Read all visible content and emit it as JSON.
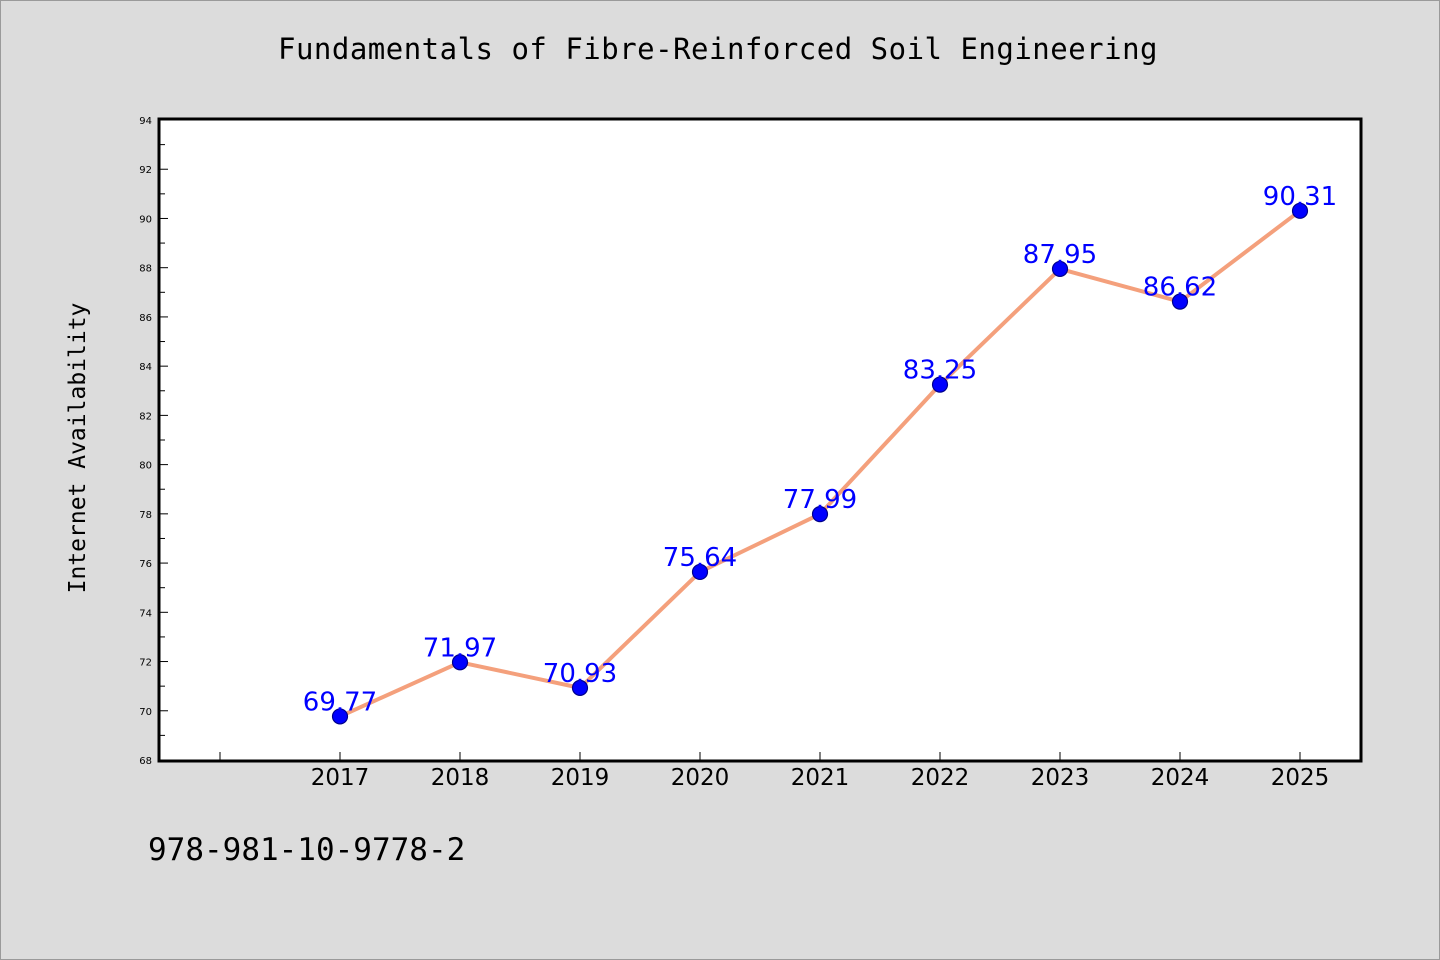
{
  "chart_data": {
    "type": "line",
    "title": "Fundamentals of Fibre-Reinforced Soil Engineering",
    "xlabel": "",
    "ylabel": "Internet Availability",
    "categories": [
      "2017",
      "2018",
      "2019",
      "2020",
      "2021",
      "2022",
      "2023",
      "2024",
      "2025"
    ],
    "series": [
      {
        "values": [
          69.77,
          71.97,
          70.93,
          75.64,
          77.99,
          83.25,
          87.95,
          86.62,
          90.31
        ],
        "data_labels": [
          "69.77",
          "71.97",
          "70.93",
          "75.64",
          "77.99",
          "83.25",
          "87.95",
          "86.62",
          "90.31"
        ]
      }
    ],
    "ylim": [
      68,
      94
    ],
    "yticks": [
      68,
      70,
      72,
      74,
      76,
      78,
      80,
      82,
      84,
      86,
      88,
      90,
      92,
      94
    ],
    "ytick_labels": [
      "68",
      "70",
      "72",
      "74",
      "76",
      "78",
      "80",
      "82",
      "84",
      "86",
      "88",
      "90",
      "92",
      "94"
    ],
    "grid": false,
    "legend": "none",
    "colors": {
      "line": "#f4a07c",
      "marker": "#0000ff",
      "marker_edge": "#00008b",
      "data_label": "#0000ff",
      "plot_background": "#ffffff",
      "figure_background": "#dcdcdc"
    }
  },
  "footer": {
    "isbn": "978-981-10-9778-2"
  }
}
